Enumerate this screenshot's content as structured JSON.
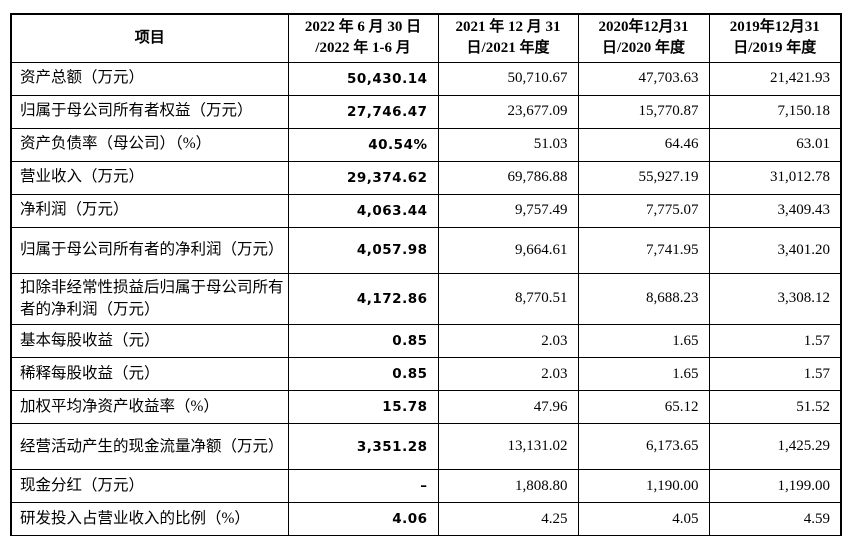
{
  "accent_colors": {
    "border": "#000000",
    "text": "#000000",
    "background": "#ffffff"
  },
  "table": {
    "columns": [
      {
        "id": "item",
        "lines": [
          "项目"
        ]
      },
      {
        "id": "2022",
        "lines": [
          "2022 年 6 月 30 日",
          "/2022 年 1-6 月"
        ]
      },
      {
        "id": "2021",
        "lines": [
          "2021 年 12 月 31",
          "日/2021 年度"
        ]
      },
      {
        "id": "2020",
        "lines": [
          "2020年12月31",
          "日/2020 年度"
        ]
      },
      {
        "id": "2019",
        "lines": [
          "2019年12月31",
          "日/2019 年度"
        ]
      }
    ],
    "rows": [
      {
        "label": "资产总额（万元）",
        "size": "single",
        "values": [
          "50,430.14",
          "50,710.67",
          "47,703.63",
          "21,421.93"
        ]
      },
      {
        "label": "归属于母公司所有者权益（万元）",
        "size": "single",
        "values": [
          "27,746.47",
          "23,677.09",
          "15,770.87",
          "7,150.18"
        ]
      },
      {
        "label": "资产负债率（母公司）（%）",
        "size": "single",
        "values": [
          "40.54%",
          "51.03",
          "64.46",
          "63.01"
        ]
      },
      {
        "label": "营业收入（万元）",
        "size": "single",
        "values": [
          "29,374.62",
          "69,786.88",
          "55,927.19",
          "31,012.78"
        ]
      },
      {
        "label": "净利润（万元）",
        "size": "single",
        "values": [
          "4,063.44",
          "9,757.49",
          "7,775.07",
          "3,409.43"
        ]
      },
      {
        "label": "归属于母公司所有者的净利润（万元）",
        "size": "double",
        "values": [
          "4,057.98",
          "9,664.61",
          "7,741.95",
          "3,401.20"
        ]
      },
      {
        "label": "扣除非经常性损益后归属于母公司所有者的净利润（万元）",
        "size": "double",
        "values": [
          "4,172.86",
          "8,770.51",
          "8,688.23",
          "3,308.12"
        ]
      },
      {
        "label": "基本每股收益（元）",
        "size": "single",
        "values": [
          "0.85",
          "2.03",
          "1.65",
          "1.57"
        ]
      },
      {
        "label": "稀释每股收益（元）",
        "size": "single",
        "values": [
          "0.85",
          "2.03",
          "1.65",
          "1.57"
        ]
      },
      {
        "label": "加权平均净资产收益率（%）",
        "size": "single",
        "values": [
          "15.78",
          "47.96",
          "65.12",
          "51.52"
        ]
      },
      {
        "label": "经营活动产生的现金流量净额（万元）",
        "size": "double",
        "values": [
          "3,351.28",
          "13,131.02",
          "6,173.65",
          "1,425.29"
        ]
      },
      {
        "label": "现金分红（万元）",
        "size": "single",
        "values": [
          "–",
          "1,808.80",
          "1,190.00",
          "1,199.00"
        ]
      },
      {
        "label": "研发投入占营业收入的比例（%）",
        "size": "single",
        "values": [
          "4.06",
          "4.25",
          "4.05",
          "4.59"
        ]
      }
    ]
  }
}
